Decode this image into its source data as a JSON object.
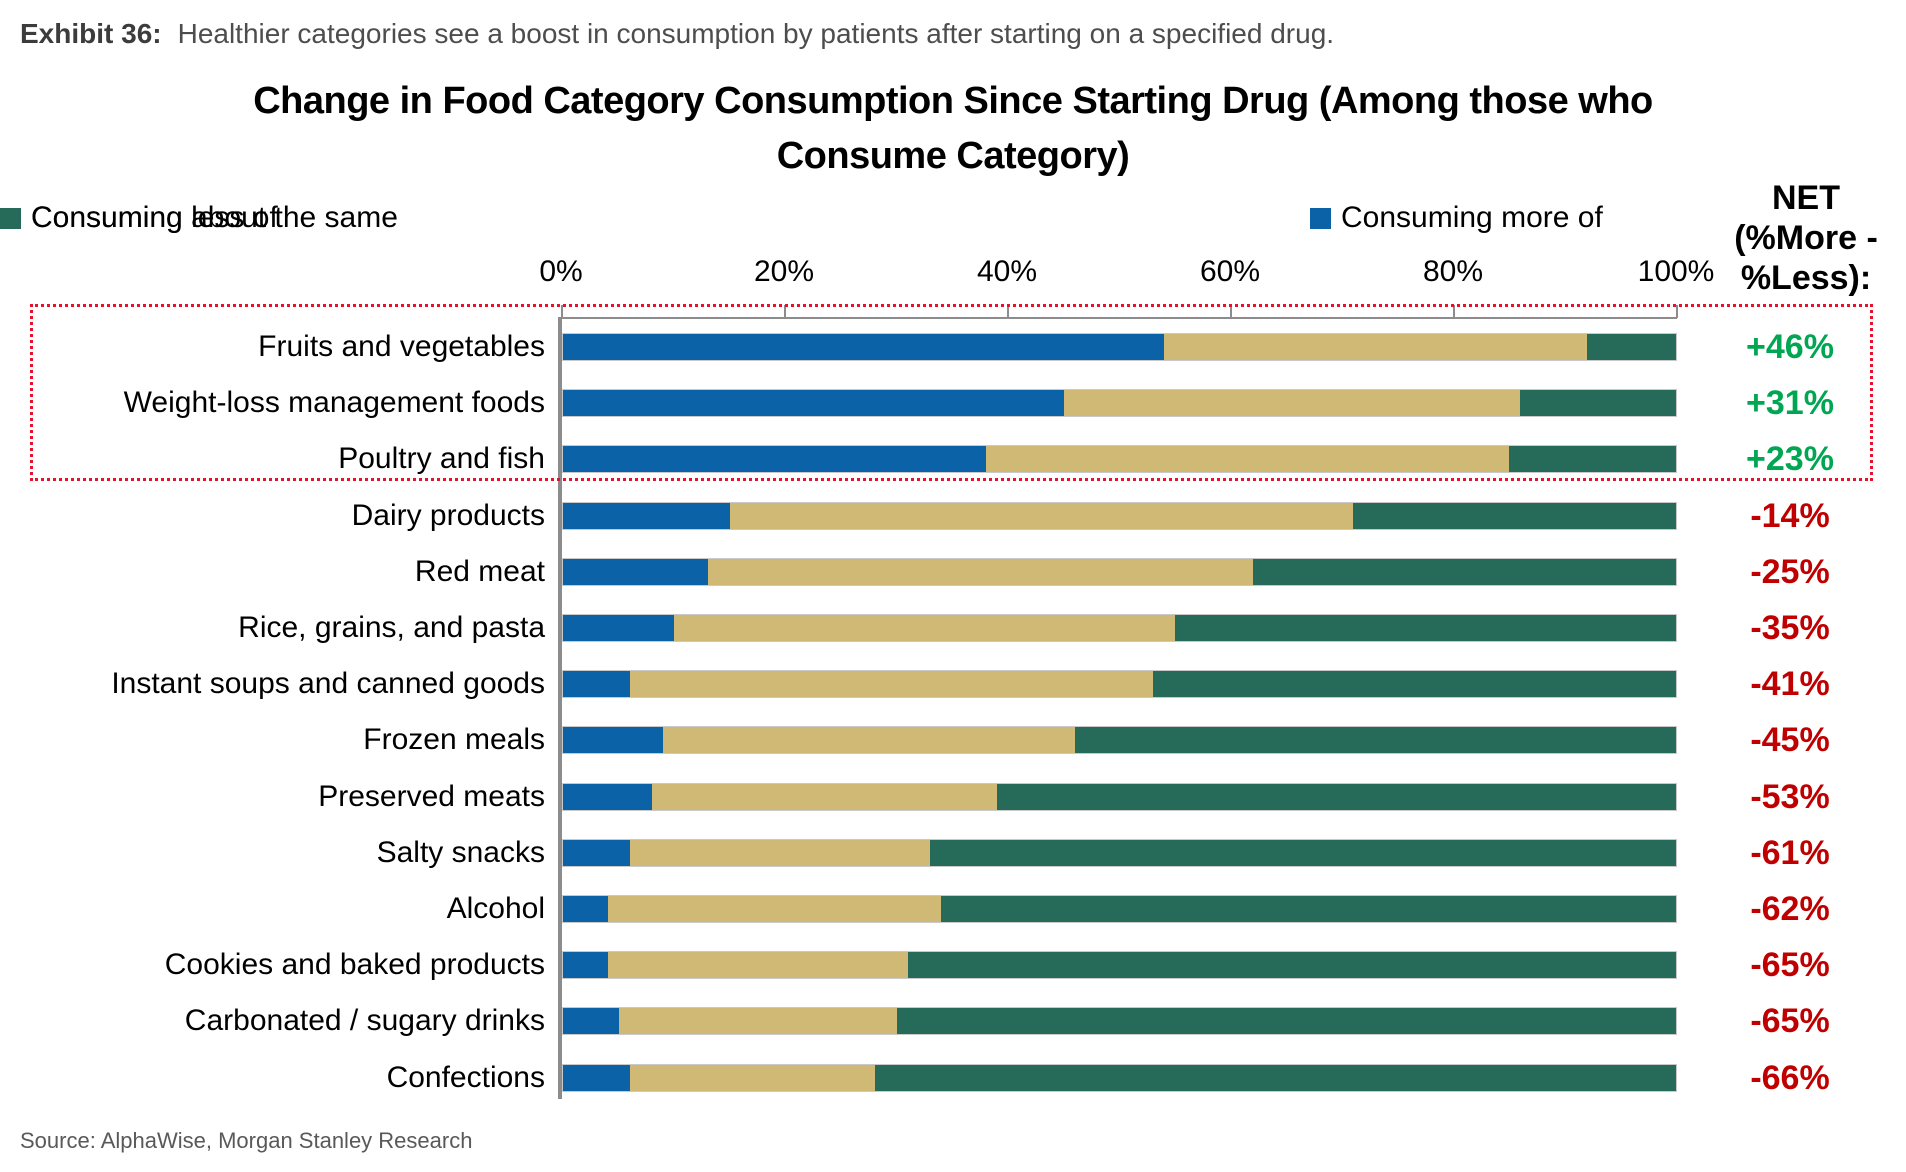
{
  "exhibit": {
    "label": "Exhibit 36:",
    "description": "Healthier categories see a boost in consumption by patients after starting on a specified drug."
  },
  "chart_data": {
    "type": "bar",
    "variant": "horizontal-stacked-100pct",
    "title_line1": "Change in Food Category Consumption Since Starting Drug (Among those who",
    "title_line2": "Consume Category)",
    "legend_position": "top",
    "grid": false,
    "x_range": [
      0,
      100
    ],
    "x_ticks": [
      "0%",
      "20%",
      "40%",
      "60%",
      "80%",
      "100%"
    ],
    "legend": [
      {
        "label": "Consuming more of",
        "color": "#0C62A6"
      },
      {
        "label": "Consuming about the same",
        "color": "#CFB975"
      },
      {
        "label": "Consuming less of",
        "color": "#266B59"
      }
    ],
    "net_header": {
      "line1": "NET",
      "line2": "(%More -",
      "line3": "%Less):"
    },
    "categories": [
      "Fruits and vegetables",
      "Weight-loss management foods",
      "Poultry and fish",
      "Dairy products",
      "Red meat",
      "Rice, grains, and pasta",
      "Instant soups and canned goods",
      "Frozen meals",
      "Preserved meats",
      "Salty snacks",
      "Alcohol",
      "Cookies and baked products",
      "Carbonated / sugary drinks",
      "Confections"
    ],
    "series": [
      {
        "name": "Consuming more of",
        "color": "#0C62A6",
        "values": [
          54,
          45,
          38,
          15,
          13,
          10,
          6,
          9,
          8,
          6,
          4,
          4,
          5,
          6
        ]
      },
      {
        "name": "Consuming about the same",
        "color": "#CFB975",
        "values": [
          38,
          41,
          47,
          56,
          49,
          45,
          47,
          37,
          31,
          27,
          30,
          27,
          25,
          22
        ]
      },
      {
        "name": "Consuming less of",
        "color": "#266B59",
        "values": [
          8,
          14,
          15,
          29,
          38,
          45,
          47,
          54,
          61,
          67,
          66,
          69,
          70,
          72
        ]
      }
    ],
    "net_values": [
      "+46%",
      "+31%",
      "+23%",
      "-14%",
      "-25%",
      "-35%",
      "-41%",
      "-45%",
      "-53%",
      "-61%",
      "-62%",
      "-65%",
      "-65%",
      "-66%"
    ],
    "net_positive_color": "#00A651",
    "net_negative_color": "#C00000",
    "highlighted_rows": [
      0,
      1,
      2
    ],
    "highlight_border_color": "#E8112D"
  },
  "source": "Source: AlphaWise, Morgan Stanley Research"
}
